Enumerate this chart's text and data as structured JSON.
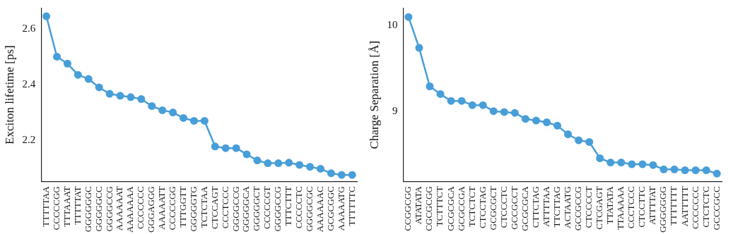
{
  "chart_data": [
    {
      "type": "line",
      "ylabel": "Exciton lifetime [ps]",
      "categories": [
        "TTTTTAA",
        "CCCCCGG",
        "TTTAAAT",
        "TTTTTAT",
        "GGGGGGC",
        "GGGGGCC",
        "GGGGCCG",
        "AAAAAAT",
        "AAAAAAA",
        "CCCCCCC",
        "GGGAGGG",
        "AAAAATT",
        "CCCCCGG",
        "TTTGGTT",
        "GGGGGTG",
        "TCTCTAA",
        "CTCCAGT",
        "CCCTCCC",
        "GGGGCCG",
        "GGGGGCA",
        "GGGGGCT",
        "CCCCCGT",
        "GGGGCCG",
        "TTTCTTT",
        "CCCCCTC",
        "GGGGCGC",
        "AAAAAAC",
        "GCGCGGC",
        "AAAAATG",
        "TTTTTTC"
      ],
      "series": [
        {
          "color": "#479ed8",
          "values": [
            2.645,
            2.5,
            2.475,
            2.435,
            2.42,
            2.39,
            2.367,
            2.36,
            2.355,
            2.348,
            2.323,
            2.308,
            2.3,
            2.28,
            2.27,
            2.27,
            2.178,
            2.172,
            2.172,
            2.15,
            2.128,
            2.118,
            2.118,
            2.12,
            2.112,
            2.105,
            2.098,
            2.082,
            2.076,
            2.076
          ]
        }
      ],
      "ylim": [
        2.053,
        2.673
      ],
      "yticks": [
        2.2,
        2.4,
        2.6
      ],
      "marker": "circle",
      "line_style": "solid"
    },
    {
      "type": "line",
      "ylabel": "Charge Separation [Å]",
      "categories": [
        "CCGGCGG",
        "ATATATA",
        "CGCGCGG",
        "TCTTTCT",
        "GCGCGCA",
        "GCGCCGA",
        "TCTCTCT",
        "CTCCTAG",
        "GCGCGCT",
        "CTCCCTC",
        "GCCGCCT",
        "GCGCGCA",
        "CTTCTAG",
        "ATTTTAA",
        "TTCTTAG",
        "ACTAATG",
        "GCCGCCG",
        "CTCCCCT",
        "CTCGAGT",
        "TTATATA",
        "TTAAAAA",
        "CCCTCCC",
        "CTCCTTC",
        "ATTTTAT",
        "GGGGGGG",
        "TTTTTTT",
        "AATTTTT",
        "CCCCCCC",
        "CTCTCTC",
        "GCCCGCC"
      ],
      "series": [
        {
          "color": "#479ed8",
          "values": [
            10.1,
            9.74,
            9.29,
            9.2,
            9.12,
            9.12,
            9.07,
            9.07,
            9.0,
            8.99,
            8.98,
            8.91,
            8.89,
            8.87,
            8.83,
            8.73,
            8.66,
            8.64,
            8.45,
            8.4,
            8.4,
            8.38,
            8.38,
            8.37,
            8.32,
            8.32,
            8.31,
            8.31,
            8.31,
            8.27
          ]
        }
      ],
      "ylim": [
        8.18,
        10.2
      ],
      "yticks": [
        9,
        10
      ],
      "marker": "circle",
      "line_style": "solid"
    }
  ]
}
